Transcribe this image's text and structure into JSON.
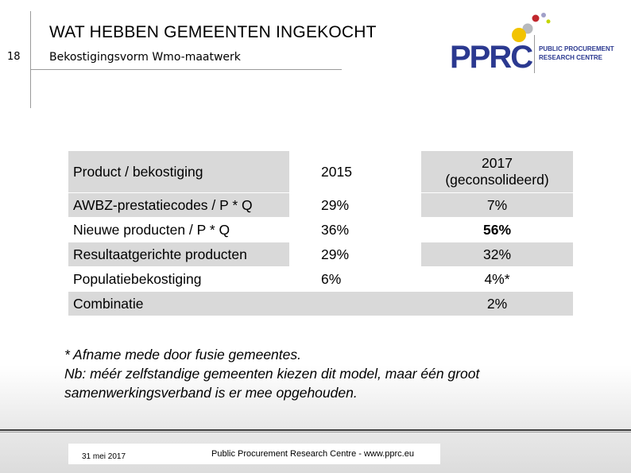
{
  "slide": {
    "number": "18",
    "title": "WAT HEBBEN GEMEENTEN INGEKOCHT",
    "subtitle": "Bekostigingsvorm Wmo-maatwerk"
  },
  "logo": {
    "letters": "PPRC",
    "line1": "PUBLIC PROCUREMENT",
    "line2": "RESEARCH CENTRE",
    "dot_colors": [
      "#b7b9bd",
      "#c1272d",
      "#f2c300",
      "#a09fc8",
      "#c4d600"
    ]
  },
  "table": {
    "headers": {
      "product": "Product / bekostiging",
      "y2015": "2015",
      "y2017_line1": "2017",
      "y2017_line2": "(geconsolideerd)"
    },
    "rows": [
      {
        "product": "AWBZ-prestatiecodes / P * Q",
        "y2015": "29%",
        "y2017": "7%"
      },
      {
        "product": "Nieuwe producten / P * Q",
        "y2015": "36%",
        "y2017": "56%"
      },
      {
        "product": "Resultaatgerichte producten",
        "y2015": "29%",
        "y2017": "32%"
      },
      {
        "product": "Populatiebekostiging",
        "y2015": "6%",
        "y2017": "4%*"
      },
      {
        "product": "Combinatie",
        "y2015": "",
        "y2017": "2%"
      }
    ]
  },
  "notes": {
    "line1": "* Afname mede door fusie gemeentes.",
    "line2": "Nb: méér zelfstandige gemeenten kiezen dit model, maar één groot",
    "line3": "samenwerkingsverband is er mee opgehouden."
  },
  "footer": {
    "date": "31 mei 2017",
    "text": "Public Procurement Research Centre - www.pprc.eu"
  }
}
